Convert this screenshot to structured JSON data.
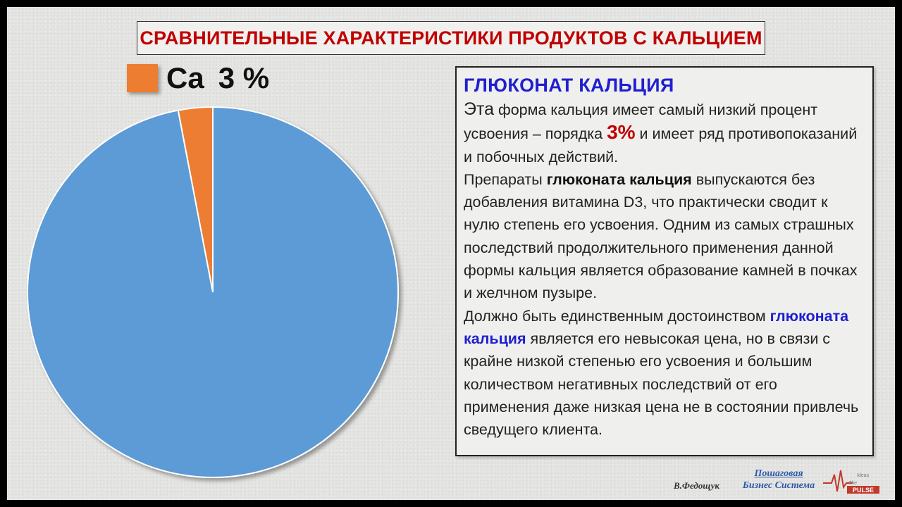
{
  "title": "СРАВНИТЕЛЬНЫЕ ХАРАКТЕРИСТИКИ ПРОДУКТОВ С КАЛЬЦИЕМ",
  "chart_data": {
    "type": "pie",
    "series": [
      {
        "name": "Ca",
        "value": 3,
        "color": "#ed7d31"
      },
      {
        "value": 97,
        "color": "#5b9bd5"
      }
    ],
    "legend": {
      "label": "Ca",
      "value_text": "3 %",
      "placement": "top-left"
    }
  },
  "panel": {
    "heading": "ГЛЮКОНАТ КАЛЬЦИЯ",
    "p1_lead": "Эта",
    "p1_a": " форма кальция имеет самый низкий процент усвоения – порядка ",
    "p1_pct": "3%",
    "p1_b": " и имеет ряд противопоказаний и побочных действий.",
    "p2_a": "Препараты ",
    "p2_bold": "глюконата кальция",
    "p2_b": " выпускаются без добавления витамина D3, что практически сводит к нулю степень его усвоения. Одним из самых страшных последствий продолжительного применения данной формы кальция является образование камней в почках и желчном пузыре.",
    "p3_a": "Должно быть единственным достоинством ",
    "p3_bold": "глюконата кальция",
    "p3_b": " является его невысокая цена, но в связи с крайне низкой степенью его усвоения и большим количеством негативных последствий от его применения даже низкая цена не в состоянии привлечь сведущего клиента."
  },
  "footer": {
    "author": "В.Федощук",
    "brand_line1": "Пошаговая",
    "brand_line2": "Бизнес Система",
    "logo_text": "PULSE",
    "logo_small": "The",
    "logo_tag": "Ideas"
  },
  "colors": {
    "title_red": "#c00000",
    "heading_blue": "#1f1fd0",
    "pie_blue": "#5b9bd5",
    "pie_orange": "#ed7d31"
  }
}
